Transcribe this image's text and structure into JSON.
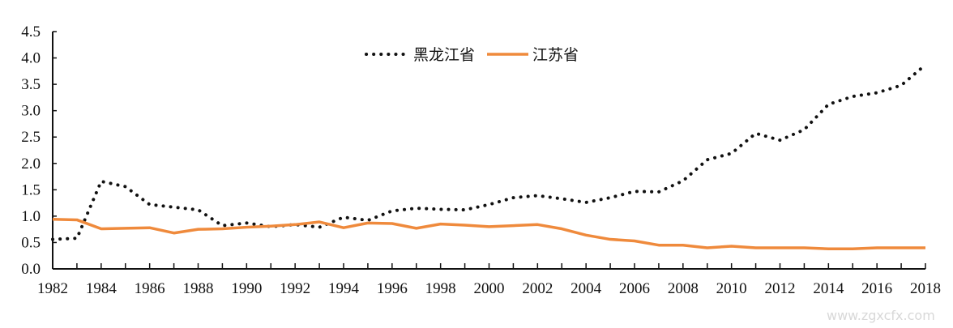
{
  "chart_data": {
    "type": "line",
    "title": "",
    "xlabel": "",
    "ylabel": "",
    "x": [
      1982,
      1983,
      1984,
      1985,
      1986,
      1987,
      1988,
      1989,
      1990,
      1991,
      1992,
      1993,
      1994,
      1995,
      1996,
      1997,
      1998,
      1999,
      2000,
      2001,
      2002,
      2003,
      2004,
      2005,
      2006,
      2007,
      2008,
      2009,
      2010,
      2011,
      2012,
      2013,
      2014,
      2015,
      2016,
      2017,
      2018
    ],
    "xlim": [
      1982,
      2018
    ],
    "ylim": [
      0,
      4.5
    ],
    "x_ticks": [
      "1982",
      "1984",
      "1986",
      "1988",
      "1990",
      "1992",
      "1994",
      "1996",
      "1998",
      "2000",
      "2002",
      "2004",
      "2006",
      "2008",
      "2010",
      "2012",
      "2014",
      "2016",
      "2018"
    ],
    "y_ticks": [
      "0.0",
      "0.5",
      "1.0",
      "1.5",
      "2.0",
      "2.5",
      "3.0",
      "3.5",
      "4.0",
      "4.5"
    ],
    "grid": false,
    "legend_position": "top-center",
    "series": [
      {
        "name": "黑龙江省",
        "color": "#111111",
        "style": "dotted",
        "values": [
          0.56,
          0.58,
          1.66,
          1.56,
          1.22,
          1.17,
          1.12,
          0.82,
          0.87,
          0.8,
          0.84,
          0.79,
          0.98,
          0.92,
          1.1,
          1.15,
          1.13,
          1.12,
          1.22,
          1.35,
          1.39,
          1.33,
          1.26,
          1.35,
          1.47,
          1.46,
          1.67,
          2.07,
          2.19,
          2.57,
          2.44,
          2.64,
          3.12,
          3.27,
          3.34,
          3.48,
          3.87
        ]
      },
      {
        "name": "江苏省",
        "color": "#ef8a3c",
        "style": "solid",
        "values": [
          0.94,
          0.93,
          0.76,
          0.77,
          0.78,
          0.68,
          0.75,
          0.76,
          0.79,
          0.81,
          0.84,
          0.89,
          0.78,
          0.87,
          0.86,
          0.77,
          0.85,
          0.83,
          0.8,
          0.82,
          0.84,
          0.76,
          0.64,
          0.56,
          0.53,
          0.45,
          0.45,
          0.4,
          0.43,
          0.4,
          0.4,
          0.4,
          0.38,
          0.38,
          0.4,
          0.4,
          0.4
        ]
      }
    ]
  },
  "watermark": "www.zgxcfx.com"
}
